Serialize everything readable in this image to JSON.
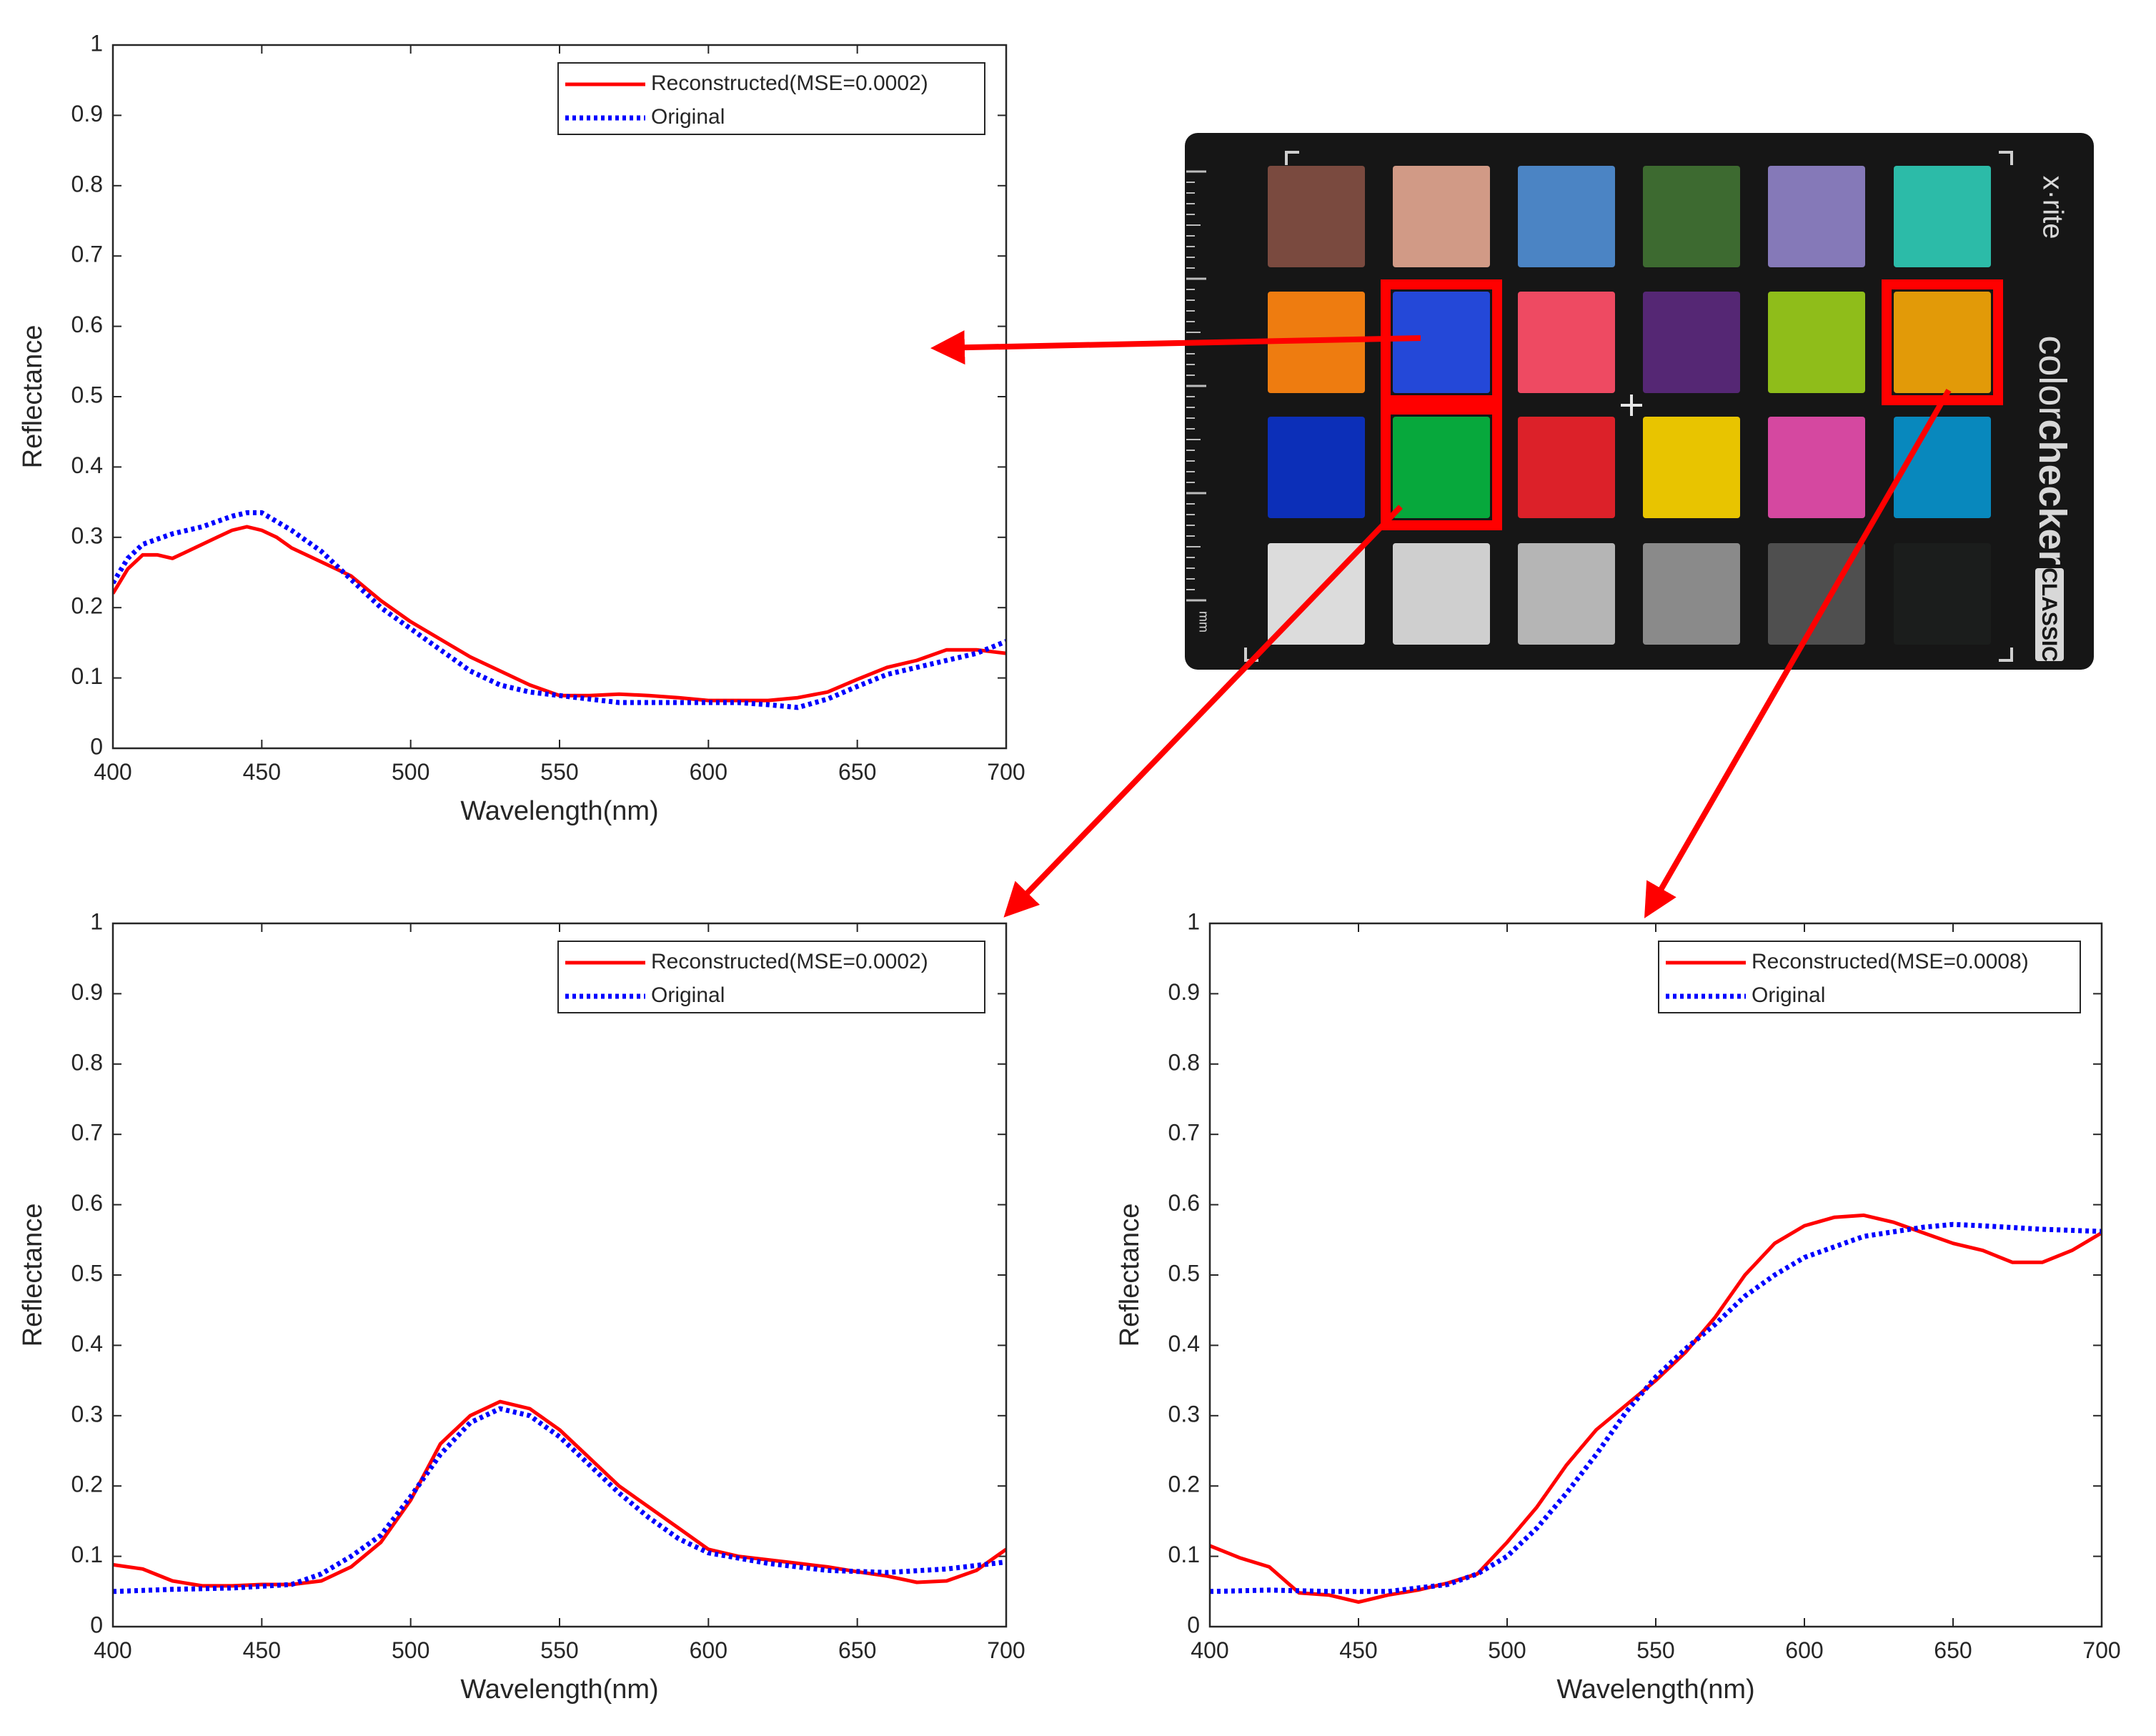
{
  "chart_data": [
    {
      "type": "line",
      "name": "blue-patch-spectrum",
      "xlabel": "Wavelength(nm)",
      "ylabel": "Reflectance",
      "xlim": [
        400,
        700
      ],
      "ylim": [
        0,
        1
      ],
      "xticks": [
        400,
        450,
        500,
        550,
        600,
        650,
        700
      ],
      "yticks": [
        0,
        0.1,
        0.2,
        0.3,
        0.4,
        0.5,
        0.6,
        0.7,
        0.8,
        0.9,
        1
      ],
      "ytick_labels": [
        "0",
        "0.1",
        "0.2",
        "0.3",
        "0.4",
        "0.5",
        "0.6",
        "0.7",
        "0.8",
        "0.9",
        "1"
      ],
      "legend_position": "top-right",
      "series": [
        {
          "name": "Reconstructed(MSE=0.0002)",
          "color": "#ff0000",
          "style": "solid",
          "x": [
            400,
            405,
            410,
            415,
            420,
            425,
            430,
            435,
            440,
            445,
            450,
            455,
            460,
            470,
            480,
            490,
            500,
            510,
            520,
            530,
            540,
            550,
            560,
            570,
            580,
            590,
            600,
            610,
            620,
            630,
            640,
            650,
            660,
            670,
            680,
            690,
            700
          ],
          "y": [
            0.22,
            0.255,
            0.275,
            0.275,
            0.27,
            0.28,
            0.29,
            0.3,
            0.31,
            0.315,
            0.31,
            0.3,
            0.285,
            0.265,
            0.245,
            0.21,
            0.18,
            0.155,
            0.13,
            0.11,
            0.09,
            0.075,
            0.075,
            0.077,
            0.075,
            0.072,
            0.068,
            0.068,
            0.068,
            0.072,
            0.08,
            0.098,
            0.115,
            0.125,
            0.14,
            0.14,
            0.135
          ]
        },
        {
          "name": "Original",
          "color": "#0000ff",
          "style": "dotted",
          "x": [
            400,
            405,
            410,
            420,
            430,
            440,
            445,
            450,
            460,
            470,
            480,
            490,
            500,
            510,
            520,
            530,
            540,
            550,
            560,
            570,
            580,
            590,
            600,
            610,
            620,
            630,
            640,
            650,
            660,
            670,
            680,
            690,
            700
          ],
          "y": [
            0.235,
            0.27,
            0.29,
            0.305,
            0.315,
            0.33,
            0.335,
            0.335,
            0.31,
            0.28,
            0.24,
            0.2,
            0.17,
            0.14,
            0.11,
            0.09,
            0.08,
            0.075,
            0.07,
            0.065,
            0.065,
            0.065,
            0.065,
            0.065,
            0.062,
            0.058,
            0.07,
            0.088,
            0.105,
            0.115,
            0.125,
            0.135,
            0.152
          ]
        }
      ]
    },
    {
      "type": "line",
      "name": "green-patch-spectrum",
      "xlabel": "Wavelength(nm)",
      "ylabel": "Reflectance",
      "xlim": [
        400,
        700
      ],
      "ylim": [
        0,
        1
      ],
      "xticks": [
        400,
        450,
        500,
        550,
        600,
        650,
        700
      ],
      "yticks": [
        0,
        0.1,
        0.2,
        0.3,
        0.4,
        0.5,
        0.6,
        0.7,
        0.8,
        0.9,
        1
      ],
      "ytick_labels": [
        "0",
        "0.1",
        "0.2",
        "0.3",
        "0.4",
        "0.5",
        "0.6",
        "0.7",
        "0.8",
        "0.9",
        "1"
      ],
      "legend_position": "top-right",
      "series": [
        {
          "name": "Reconstructed(MSE=0.0002)",
          "color": "#ff0000",
          "style": "solid",
          "x": [
            400,
            410,
            420,
            430,
            440,
            450,
            460,
            470,
            480,
            490,
            500,
            510,
            520,
            530,
            540,
            550,
            560,
            570,
            580,
            590,
            600,
            610,
            620,
            630,
            640,
            650,
            660,
            670,
            680,
            690,
            700
          ],
          "y": [
            0.088,
            0.082,
            0.065,
            0.058,
            0.058,
            0.06,
            0.06,
            0.065,
            0.085,
            0.12,
            0.18,
            0.26,
            0.3,
            0.32,
            0.31,
            0.28,
            0.24,
            0.2,
            0.17,
            0.14,
            0.11,
            0.1,
            0.095,
            0.09,
            0.085,
            0.078,
            0.072,
            0.063,
            0.065,
            0.08,
            0.11
          ]
        },
        {
          "name": "Original",
          "color": "#0000ff",
          "style": "dotted",
          "x": [
            400,
            420,
            440,
            460,
            470,
            480,
            490,
            500,
            510,
            520,
            530,
            540,
            550,
            560,
            570,
            580,
            590,
            600,
            620,
            640,
            660,
            680,
            700
          ],
          "y": [
            0.05,
            0.053,
            0.055,
            0.06,
            0.075,
            0.1,
            0.13,
            0.185,
            0.245,
            0.29,
            0.31,
            0.3,
            0.27,
            0.23,
            0.19,
            0.155,
            0.125,
            0.105,
            0.09,
            0.08,
            0.077,
            0.082,
            0.092
          ]
        }
      ]
    },
    {
      "type": "line",
      "name": "orange-yellow-patch-spectrum",
      "xlabel": "Wavelength(nm)",
      "ylabel": "Reflectance",
      "xlim": [
        400,
        700
      ],
      "ylim": [
        0,
        1
      ],
      "xticks": [
        400,
        450,
        500,
        550,
        600,
        650,
        700
      ],
      "yticks": [
        0,
        0.1,
        0.2,
        0.3,
        0.4,
        0.5,
        0.6,
        0.7,
        0.8,
        0.9,
        1
      ],
      "ytick_labels": [
        "0",
        "0.1",
        "0.2",
        "0.3",
        "0.4",
        "0.5",
        "0.6",
        "0.7",
        "0.8",
        "0.9",
        "1"
      ],
      "legend_position": "top-right",
      "series": [
        {
          "name": "Reconstructed(MSE=0.0008)",
          "color": "#ff0000",
          "style": "solid",
          "x": [
            400,
            410,
            420,
            430,
            440,
            450,
            460,
            470,
            480,
            490,
            500,
            510,
            520,
            530,
            540,
            550,
            560,
            570,
            580,
            590,
            600,
            610,
            620,
            630,
            640,
            650,
            660,
            670,
            680,
            690,
            700
          ],
          "y": [
            0.115,
            0.098,
            0.085,
            0.048,
            0.045,
            0.035,
            0.045,
            0.052,
            0.062,
            0.075,
            0.12,
            0.17,
            0.23,
            0.28,
            0.315,
            0.35,
            0.39,
            0.44,
            0.5,
            0.545,
            0.57,
            0.582,
            0.585,
            0.575,
            0.56,
            0.545,
            0.535,
            0.518,
            0.518,
            0.535,
            0.56
          ]
        },
        {
          "name": "Original",
          "color": "#0000ff",
          "style": "dotted",
          "x": [
            400,
            420,
            440,
            460,
            480,
            490,
            500,
            510,
            520,
            530,
            540,
            550,
            560,
            570,
            580,
            590,
            600,
            620,
            640,
            650,
            660,
            680,
            700
          ],
          "y": [
            0.05,
            0.052,
            0.05,
            0.05,
            0.06,
            0.075,
            0.1,
            0.14,
            0.19,
            0.245,
            0.305,
            0.355,
            0.395,
            0.43,
            0.47,
            0.5,
            0.525,
            0.555,
            0.568,
            0.572,
            0.57,
            0.565,
            0.562
          ]
        }
      ]
    }
  ],
  "color_checker": {
    "brand_text": "x·rite",
    "product_text_light": "color",
    "product_text_bold": "checker",
    "badge_text": "CLASSIC",
    "ruler_unit": "mm",
    "patches": [
      [
        "#7a4a3f",
        "#d19a86",
        "#4b84c4",
        "#3d6a30",
        "#8579b8",
        "#2cbba8"
      ],
      [
        "#ee7c10",
        "#2448d8",
        "#ee4a62",
        "#552774",
        "#8fbd1a",
        "#e29a08"
      ],
      [
        "#0c2fb8",
        "#07a83c",
        "#dc2129",
        "#e8c400",
        "#d548a0",
        "#0888bd"
      ],
      [
        "#dcdcdc",
        "#cfcfcf",
        "#b5b5b5",
        "#8a8a8a",
        "#4f4f4f",
        "#1b1d1c"
      ]
    ],
    "highlighted": [
      "row2-col2",
      "row2-col6",
      "row3-col2"
    ],
    "highlight_color": "#ff0000"
  }
}
